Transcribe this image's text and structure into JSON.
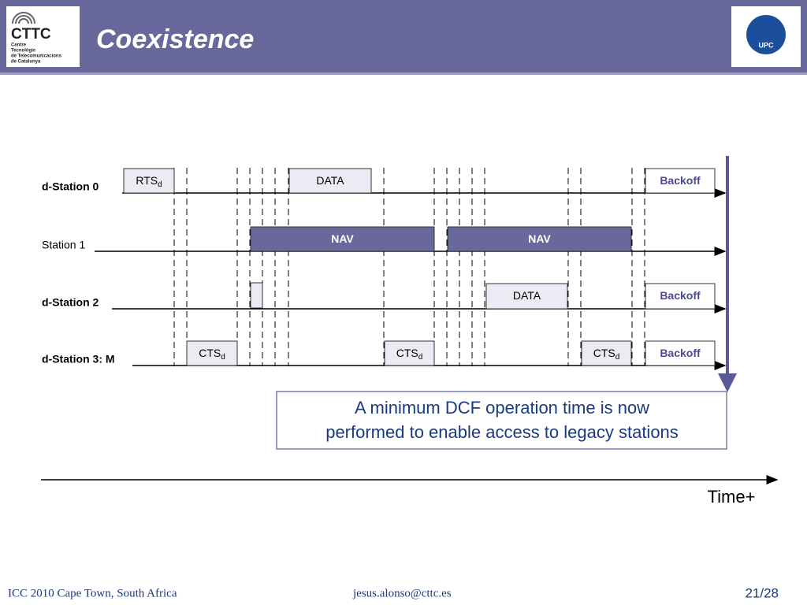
{
  "header": {
    "title": "Coexistence",
    "logo_left": {
      "name": "CTTC",
      "subtitle": [
        "Centre",
        "Tecnològic",
        "de Telecomunicacions",
        "de Catalunya"
      ]
    },
    "logo_right": "UPC"
  },
  "stations": [
    {
      "label": "d-Station 0",
      "frames": [
        {
          "label": "RTS",
          "subscript": "d"
        },
        {
          "label": "DATA"
        },
        {
          "label": "Backoff"
        }
      ]
    },
    {
      "label": "Station 1",
      "frames": [
        {
          "label": "NAV"
        },
        {
          "label": "NAV"
        }
      ]
    },
    {
      "label": "d-Station 2",
      "frames": [
        {
          "label": "DATA"
        },
        {
          "label": "Backoff"
        }
      ]
    },
    {
      "label": "d-Station 3: M",
      "frames": [
        {
          "label": "CTS",
          "subscript": "d"
        },
        {
          "label": "CTS",
          "subscript": "d"
        },
        {
          "label": "CTS",
          "subscript": "d"
        },
        {
          "label": "Backoff"
        }
      ]
    }
  ],
  "note": [
    "A minimum DCF operation time is now",
    "performed to enable access to legacy stations"
  ],
  "time_label": "Time+",
  "footer": {
    "event": "ICC 2010 Cape Town, South Africa",
    "email": "jesus.alonso@cttc.es",
    "page": "21/28"
  }
}
